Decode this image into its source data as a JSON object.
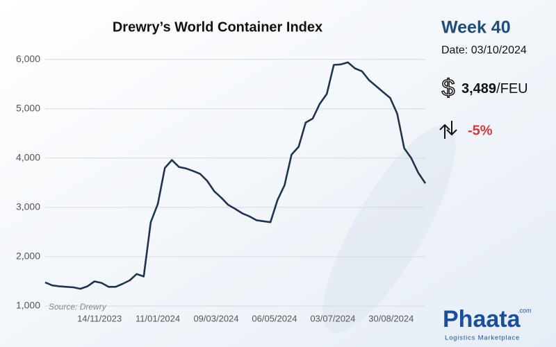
{
  "chart_data": {
    "type": "line",
    "title": "Drewry’s World Container Index",
    "source": "Source: Drewry",
    "x": [
      "21/09/2023",
      "28/09/2023",
      "05/10/2023",
      "12/10/2023",
      "19/10/2023",
      "26/10/2023",
      "02/11/2023",
      "09/11/2023",
      "16/11/2023",
      "23/11/2023",
      "30/11/2023",
      "07/12/2023",
      "14/12/2023",
      "21/12/2023",
      "28/12/2023",
      "04/01/2024",
      "11/01/2024",
      "18/01/2024",
      "25/01/2024",
      "01/02/2024",
      "08/02/2024",
      "15/02/2024",
      "22/02/2024",
      "29/02/2024",
      "07/03/2024",
      "14/03/2024",
      "21/03/2024",
      "28/03/2024",
      "04/04/2024",
      "11/04/2024",
      "18/04/2024",
      "25/04/2024",
      "02/05/2024",
      "09/05/2024",
      "16/05/2024",
      "23/05/2024",
      "30/05/2024",
      "06/06/2024",
      "13/06/2024",
      "20/06/2024",
      "27/06/2024",
      "04/07/2024",
      "11/07/2024",
      "18/07/2024",
      "25/07/2024",
      "01/08/2024",
      "08/08/2024",
      "15/08/2024",
      "22/08/2024",
      "29/08/2024",
      "05/09/2024",
      "12/09/2024",
      "19/09/2024",
      "26/09/2024",
      "03/10/2024"
    ],
    "values": [
      1480,
      1420,
      1400,
      1390,
      1380,
      1350,
      1400,
      1500,
      1470,
      1390,
      1390,
      1450,
      1520,
      1650,
      1600,
      2700,
      3070,
      3800,
      3960,
      3820,
      3790,
      3740,
      3680,
      3540,
      3330,
      3200,
      3050,
      2970,
      2880,
      2820,
      2740,
      2720,
      2700,
      3150,
      3450,
      4070,
      4230,
      4720,
      4800,
      5100,
      5300,
      5890,
      5900,
      5940,
      5820,
      5760,
      5580,
      5460,
      5340,
      5220,
      4900,
      4200,
      4000,
      3700,
      3489
    ],
    "color": "#1f3350",
    "xticks": [
      "14/11/2023",
      "11/01/2024",
      "09/03/2024",
      "06/05/2024",
      "03/07/2024",
      "30/08/2024"
    ],
    "ylim": [
      1000,
      6150
    ],
    "yticks": [
      {
        "value": 1000,
        "label": "1,000"
      },
      {
        "value": 2000,
        "label": "2,000"
      },
      {
        "value": 3000,
        "label": "3,000"
      },
      {
        "value": 4000,
        "label": "4,000"
      },
      {
        "value": 5000,
        "label": "5,000"
      },
      {
        "value": 6000,
        "label": "6,000"
      }
    ],
    "grid": true
  },
  "panel": {
    "week": "Week 40",
    "date": "Date: 03/10/2024",
    "currency": "$",
    "price": "3,489",
    "unit": "/FEU",
    "change": "-5%"
  },
  "logo": {
    "name": "Phaata",
    "domain": ".com",
    "tagline": "Logistics Marketplace"
  }
}
